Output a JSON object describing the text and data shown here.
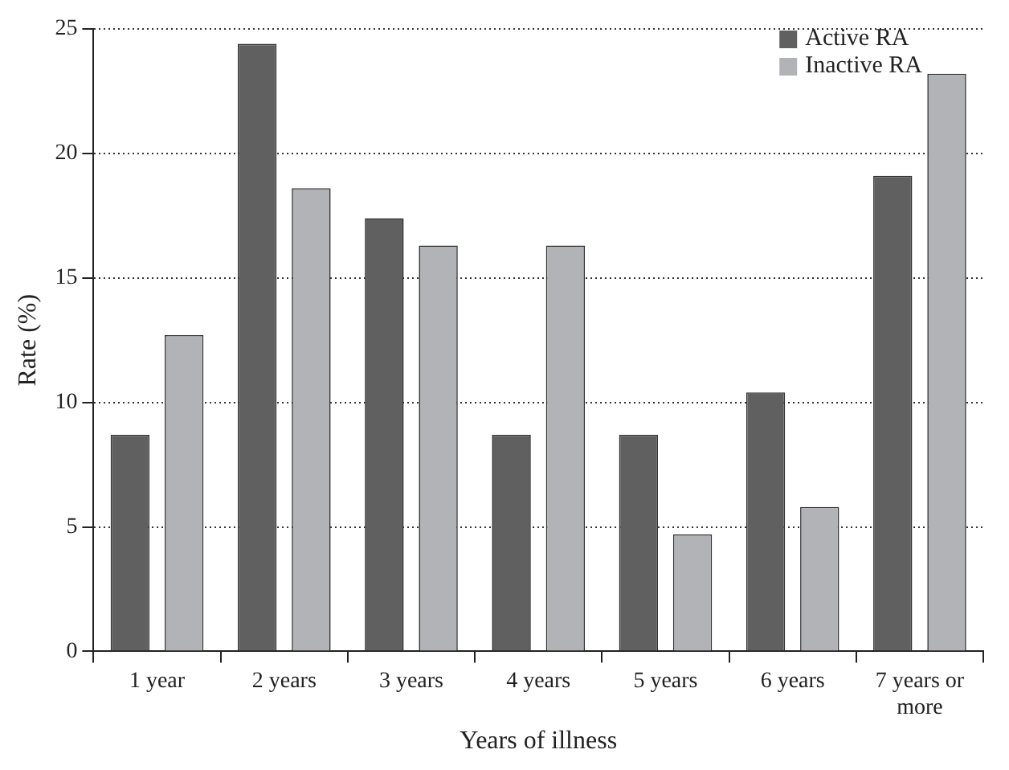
{
  "chart_data": {
    "type": "bar",
    "xlabel": "Years of illness",
    "ylabel": "Rate (%)",
    "categories": [
      "1 year",
      "2 years",
      "3 years",
      "4 years",
      "5 years",
      "6 years",
      "7 years or more"
    ],
    "series": [
      {
        "name": "Active RA",
        "color": "#606060",
        "values": [
          8.7,
          24.4,
          17.4,
          8.7,
          8.7,
          10.4,
          19.1
        ]
      },
      {
        "name": "Inactive RA",
        "color": "#b1b3b6",
        "values": [
          12.7,
          18.6,
          16.3,
          16.3,
          4.7,
          5.8,
          23.2
        ]
      }
    ],
    "ylim": [
      0,
      25
    ],
    "yticks": [
      0,
      5,
      10,
      15,
      20,
      25
    ],
    "grid": "y",
    "legend": "top right"
  }
}
